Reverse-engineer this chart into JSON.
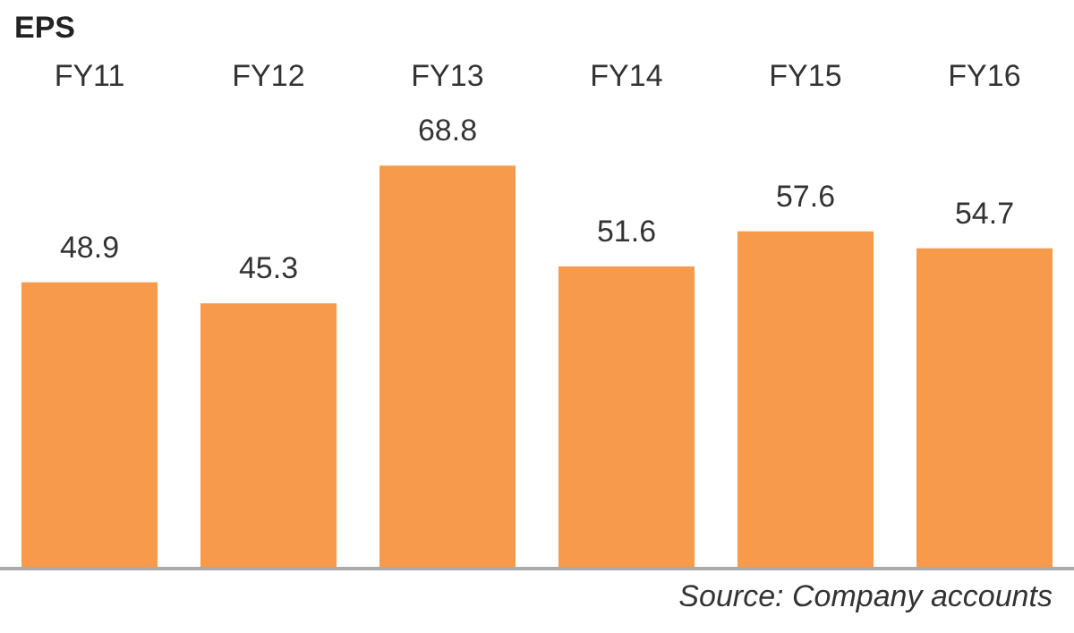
{
  "chart_data": {
    "type": "bar",
    "title": "EPS",
    "categories": [
      "FY11",
      "FY12",
      "FY13",
      "FY14",
      "FY15",
      "FY16"
    ],
    "values": [
      48.9,
      45.3,
      68.8,
      51.6,
      57.6,
      54.7
    ],
    "color": "#f79a4b",
    "data_labels": true,
    "annotations": [
      "Source: Company accounts"
    ]
  }
}
